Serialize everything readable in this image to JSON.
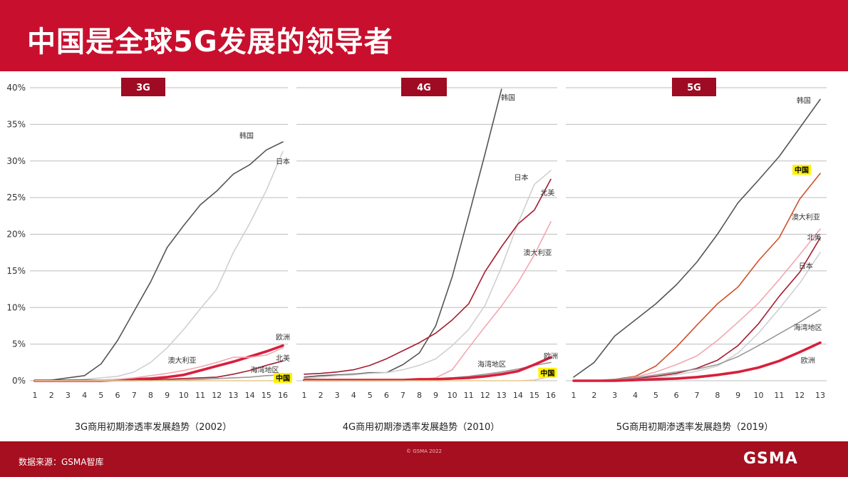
{
  "header": {
    "title": "中国是全球5G发展的领导者"
  },
  "footer": {
    "source": "数据来源：GSMA智库",
    "copyright": "© GSMA 2022",
    "logo": "GSMA"
  },
  "colors": {
    "brand_red": "#c8102e",
    "footer_red": "#a50f1f",
    "badge": "#9e0b23",
    "highlight": "#fff200"
  },
  "chart_data": [
    {
      "type": "line",
      "badge": "3G",
      "caption": "3G商用初期渗透率发展趋势（2002）",
      "x": [
        1,
        2,
        3,
        4,
        5,
        6,
        7,
        8,
        9,
        10,
        11,
        12,
        13,
        14,
        15,
        16
      ],
      "ylim": [
        0,
        40
      ],
      "yticks": [
        "0%",
        "5%",
        "10%",
        "15%",
        "20%",
        "25%",
        "30%",
        "35%",
        "40%"
      ],
      "series": [
        {
          "name": "韩国",
          "color": "#555555",
          "width": 1.6,
          "values": [
            0,
            0.1,
            0.4,
            0.7,
            2.3,
            5.5,
            9.5,
            13.5,
            18.2,
            21.2,
            24,
            25.9,
            28.2,
            29.5,
            31.5,
            32.6
          ]
        },
        {
          "name": "日本",
          "color": "#d0d0d0",
          "width": 1.6,
          "values": [
            0,
            0,
            0.1,
            0.2,
            0.4,
            0.6,
            1.2,
            2.5,
            4.5,
            7,
            9.8,
            12.5,
            17.5,
            21.5,
            26,
            31.3
          ]
        },
        {
          "name": "欧洲",
          "color": "#d81f3c",
          "width": 3.6,
          "values": [
            0,
            0,
            0,
            0,
            0,
            0.1,
            0.2,
            0.3,
            0.5,
            0.8,
            1.4,
            2,
            2.6,
            3.3,
            4,
            4.8
          ]
        },
        {
          "name": "澳大利亚",
          "color": "#f2a7b1",
          "width": 1.6,
          "values": [
            0,
            0,
            0,
            0,
            0.1,
            0.2,
            0.4,
            0.7,
            1,
            1.4,
            1.9,
            2.5,
            3.2,
            3.2,
            3.5,
            4.5
          ]
        },
        {
          "name": "北美",
          "color": "#a51c30",
          "width": 1.6,
          "values": [
            0,
            0,
            0,
            0,
            0,
            0,
            0,
            0.1,
            0.2,
            0.3,
            0.4,
            0.5,
            0.9,
            1.4,
            2.1,
            2.7
          ]
        },
        {
          "name": "海湾地区",
          "color": "#999999",
          "width": 1.6,
          "values": [
            0,
            0,
            0,
            0,
            0,
            0,
            0,
            0,
            0.1,
            0.1,
            0.2,
            0.3,
            0.4,
            0.5,
            0.7,
            0.8
          ]
        },
        {
          "name": "中国",
          "color": "#e9c88c",
          "width": 1.6,
          "values": [
            0,
            0,
            0,
            0,
            0,
            0,
            0,
            0,
            0,
            0,
            0,
            0,
            0,
            0,
            0,
            0
          ]
        }
      ],
      "labels": [
        {
          "text": "韩国",
          "x": 13.8,
          "y": 33.5,
          "hl": false
        },
        {
          "text": "日本",
          "x": 16,
          "y": 30,
          "hl": false
        },
        {
          "text": "欧洲",
          "x": 16,
          "y": 6,
          "hl": false
        },
        {
          "text": "澳大利亚",
          "x": 9.9,
          "y": 2.8,
          "hl": false
        },
        {
          "text": "北美",
          "x": 16,
          "y": 3.1,
          "hl": false
        },
        {
          "text": "海湾地区",
          "x": 14.9,
          "y": 1.5,
          "hl": false
        },
        {
          "text": "中国",
          "x": 16,
          "y": 0.1,
          "hl": true
        }
      ]
    },
    {
      "type": "line",
      "badge": "4G",
      "caption": "4G商用初期渗透率发展趋势（2010）",
      "x": [
        1,
        2,
        3,
        4,
        5,
        6,
        7,
        8,
        9,
        10,
        11,
        12,
        13,
        14,
        15,
        16
      ],
      "ylim": [
        0,
        40
      ],
      "yticks": [],
      "series": [
        {
          "name": "韩国",
          "color": "#555555",
          "width": 1.6,
          "values": [
            0.5,
            0.7,
            0.8,
            0.9,
            1.1,
            1.1,
            2.2,
            3.8,
            7.5,
            14.2,
            22.5,
            31,
            39.8,
            null,
            null,
            null
          ]
        },
        {
          "name": "日本",
          "color": "#d0d0d0",
          "width": 1.6,
          "values": [
            0.3,
            0.5,
            0.7,
            0.8,
            1,
            1.1,
            1.5,
            2.1,
            3,
            4.8,
            7,
            10.3,
            15.5,
            21.5,
            26.8,
            28.7
          ]
        },
        {
          "name": "北美",
          "color": "#a51c30",
          "width": 1.6,
          "values": [
            0.9,
            1,
            1.2,
            1.5,
            2.1,
            3,
            4.1,
            5.2,
            6.5,
            8.3,
            10.5,
            14.9,
            18.3,
            21.4,
            23.3,
            27.5
          ]
        },
        {
          "name": "澳大利亚",
          "color": "#f2a7b1",
          "width": 1.6,
          "values": [
            0,
            0,
            0,
            0,
            0,
            0,
            0.1,
            0.2,
            0.4,
            1.5,
            4.5,
            7.4,
            10.2,
            13.4,
            17.2,
            21.7
          ]
        },
        {
          "name": "海湾地区",
          "color": "#999999",
          "width": 1.6,
          "values": [
            0,
            0,
            0,
            0,
            0,
            0.1,
            0.1,
            0.2,
            0.3,
            0.4,
            0.6,
            0.9,
            1.2,
            1.6,
            2.1,
            2.5
          ]
        },
        {
          "name": "欧洲",
          "color": "#d81f3c",
          "width": 3.6,
          "values": [
            0.1,
            0.1,
            0.1,
            0.1,
            0.1,
            0.1,
            0.1,
            0.2,
            0.2,
            0.3,
            0.4,
            0.6,
            0.9,
            1.3,
            2.2,
            3.2
          ]
        },
        {
          "name": "中国",
          "color": "#e9c88c",
          "width": 1.6,
          "values": [
            0,
            0,
            0,
            0,
            0,
            0,
            0,
            0,
            0,
            0,
            0,
            0,
            0,
            0,
            0.1,
            0.6
          ]
        }
      ],
      "labels": [
        {
          "text": "韩国",
          "x": 13.4,
          "y": 38.7,
          "hl": false
        },
        {
          "text": "日本",
          "x": 14.2,
          "y": 27.8,
          "hl": false
        },
        {
          "text": "北美",
          "x": 15.8,
          "y": 25.7,
          "hl": false
        },
        {
          "text": "澳大利亚",
          "x": 15.2,
          "y": 17.5,
          "hl": false
        },
        {
          "text": "海湾地区",
          "x": 12.4,
          "y": 2.3,
          "hl": false
        },
        {
          "text": "欧洲",
          "x": 16,
          "y": 3.4,
          "hl": false
        },
        {
          "text": "中国",
          "x": 15.8,
          "y": 0.8,
          "hl": true
        }
      ]
    },
    {
      "type": "line",
      "badge": "5G",
      "caption": "5G商用初期渗透率发展趋势（2019）",
      "x": [
        1,
        2,
        3,
        4,
        5,
        6,
        7,
        8,
        9,
        10,
        11,
        12,
        13
      ],
      "ylim": [
        0,
        40
      ],
      "yticks": [],
      "series": [
        {
          "name": "韩国",
          "color": "#555555",
          "width": 1.6,
          "values": [
            0.5,
            2.5,
            6.1,
            8.3,
            10.5,
            13.1,
            16.2,
            20,
            24.3,
            27.4,
            30.6,
            34.5,
            38.4
          ]
        },
        {
          "name": "中国",
          "color": "#d0502a",
          "width": 1.6,
          "values": [
            0,
            0,
            0.2,
            0.6,
            2,
            4.6,
            7.6,
            10.5,
            12.8,
            16.4,
            19.5,
            24.8,
            28.3
          ]
        },
        {
          "name": "澳大利亚",
          "color": "#f2a7b1",
          "width": 1.6,
          "values": [
            0,
            0,
            0.1,
            0.5,
            1.2,
            2.2,
            3.4,
            5.5,
            8,
            10.6,
            13.8,
            17.2,
            20.7
          ]
        },
        {
          "name": "北美",
          "color": "#a51c30",
          "width": 1.6,
          "values": [
            0,
            0,
            0.1,
            0.3,
            0.6,
            1,
            1.7,
            2.8,
            4.8,
            7.8,
            11.5,
            14.8,
            19.5
          ]
        },
        {
          "name": "日本",
          "color": "#d0d0d0",
          "width": 1.6,
          "values": [
            0,
            0,
            0.1,
            0.2,
            0.4,
            0.8,
            1.3,
            2,
            3.8,
            6.5,
            9.8,
            13.3,
            17.5
          ]
        },
        {
          "name": "海湾地区",
          "color": "#999999",
          "width": 1.6,
          "values": [
            0,
            0,
            0.2,
            0.4,
            0.8,
            1.2,
            1.6,
            2.2,
            3.3,
            4.8,
            6.4,
            8,
            9.7
          ]
        },
        {
          "name": "欧洲",
          "color": "#d81f3c",
          "width": 3.6,
          "values": [
            0,
            0,
            0,
            0.1,
            0.2,
            0.3,
            0.5,
            0.8,
            1.2,
            1.8,
            2.7,
            3.9,
            5.2
          ]
        }
      ],
      "labels": [
        {
          "text": "韩国",
          "x": 12.2,
          "y": 38.3,
          "hl": false
        },
        {
          "text": "中国",
          "x": 12.1,
          "y": 28.5,
          "hl": true
        },
        {
          "text": "澳大利亚",
          "x": 12.3,
          "y": 22.4,
          "hl": false
        },
        {
          "text": "北美",
          "x": 12.7,
          "y": 19.6,
          "hl": false
        },
        {
          "text": "日本",
          "x": 12.3,
          "y": 15.7,
          "hl": false
        },
        {
          "text": "海湾地区",
          "x": 12.4,
          "y": 7.3,
          "hl": false
        },
        {
          "text": "欧洲",
          "x": 12.4,
          "y": 2.8,
          "hl": false
        }
      ]
    }
  ]
}
